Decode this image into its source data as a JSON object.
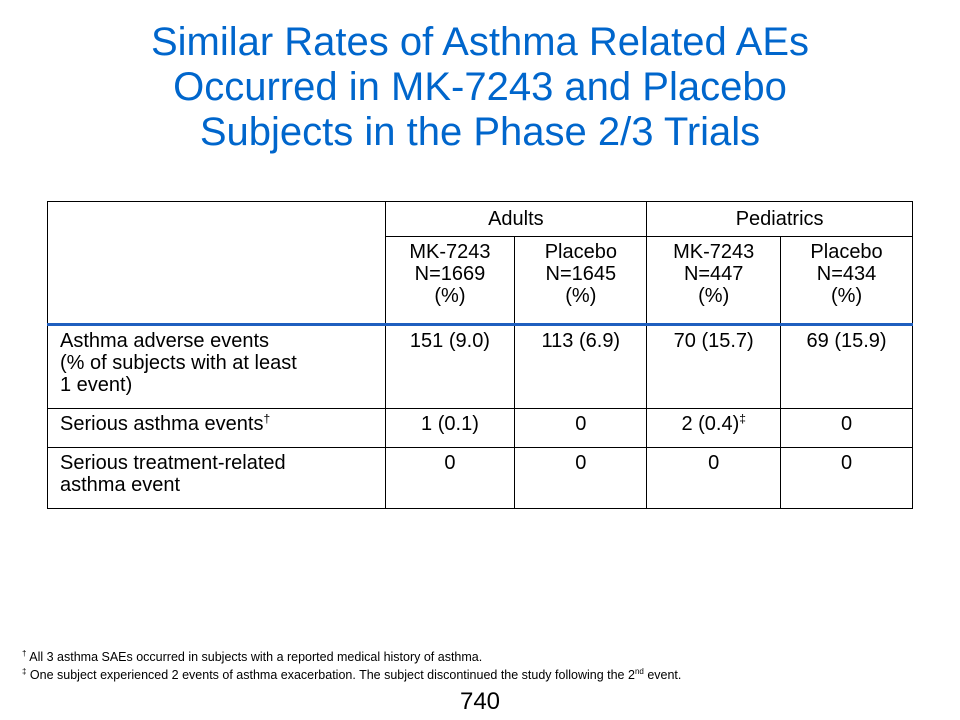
{
  "title": {
    "line1": "Similar Rates of Asthma Related AEs",
    "line2": "Occurred in MK-7243 and Placebo",
    "line3": "Subjects in the Phase 2/3 Trials"
  },
  "table": {
    "groups": {
      "adults": "Adults",
      "pediatrics": "Pediatrics"
    },
    "columns": [
      {
        "line1": "MK-7243",
        "line2": "N=1669",
        "line3": "(%)"
      },
      {
        "line1": "Placebo",
        "line2": "N=1645",
        "line3": "(%)"
      },
      {
        "line1": "MK-7243",
        "line2": "N=447",
        "line3": "(%)"
      },
      {
        "line1": "Placebo",
        "line2": "N=434",
        "line3": "(%)"
      }
    ],
    "rows": [
      {
        "label_lines": [
          "Asthma adverse events",
          "(% of subjects with at least",
          "1 event)"
        ],
        "values": [
          "151 (9.0)",
          "113 (6.9)",
          "70 (15.7)",
          "69 (15.9)"
        ]
      },
      {
        "label": "Serious asthma events",
        "label_mark": "†",
        "values": [
          "1 (0.1)",
          "0",
          "2 (0.4)",
          "0"
        ],
        "value_mark": "‡"
      },
      {
        "label_lines": [
          "Serious treatment-related",
          "asthma event"
        ],
        "values": [
          "0",
          "0",
          "0",
          "0"
        ]
      }
    ]
  },
  "footnotes": {
    "fn1_mark": "†",
    "fn1_text": " All 3 asthma SAEs occurred in subjects with a reported medical history of asthma.",
    "fn2_mark": "‡",
    "fn2_text_a": " One subject experienced 2 events of asthma exacerbation. The subject discontinued the study following the 2",
    "fn2_sup": "nd",
    "fn2_text_b": " event."
  },
  "page_number": "740",
  "colors": {
    "title": "#0066cc",
    "header_rule": "#1f5fbf"
  }
}
